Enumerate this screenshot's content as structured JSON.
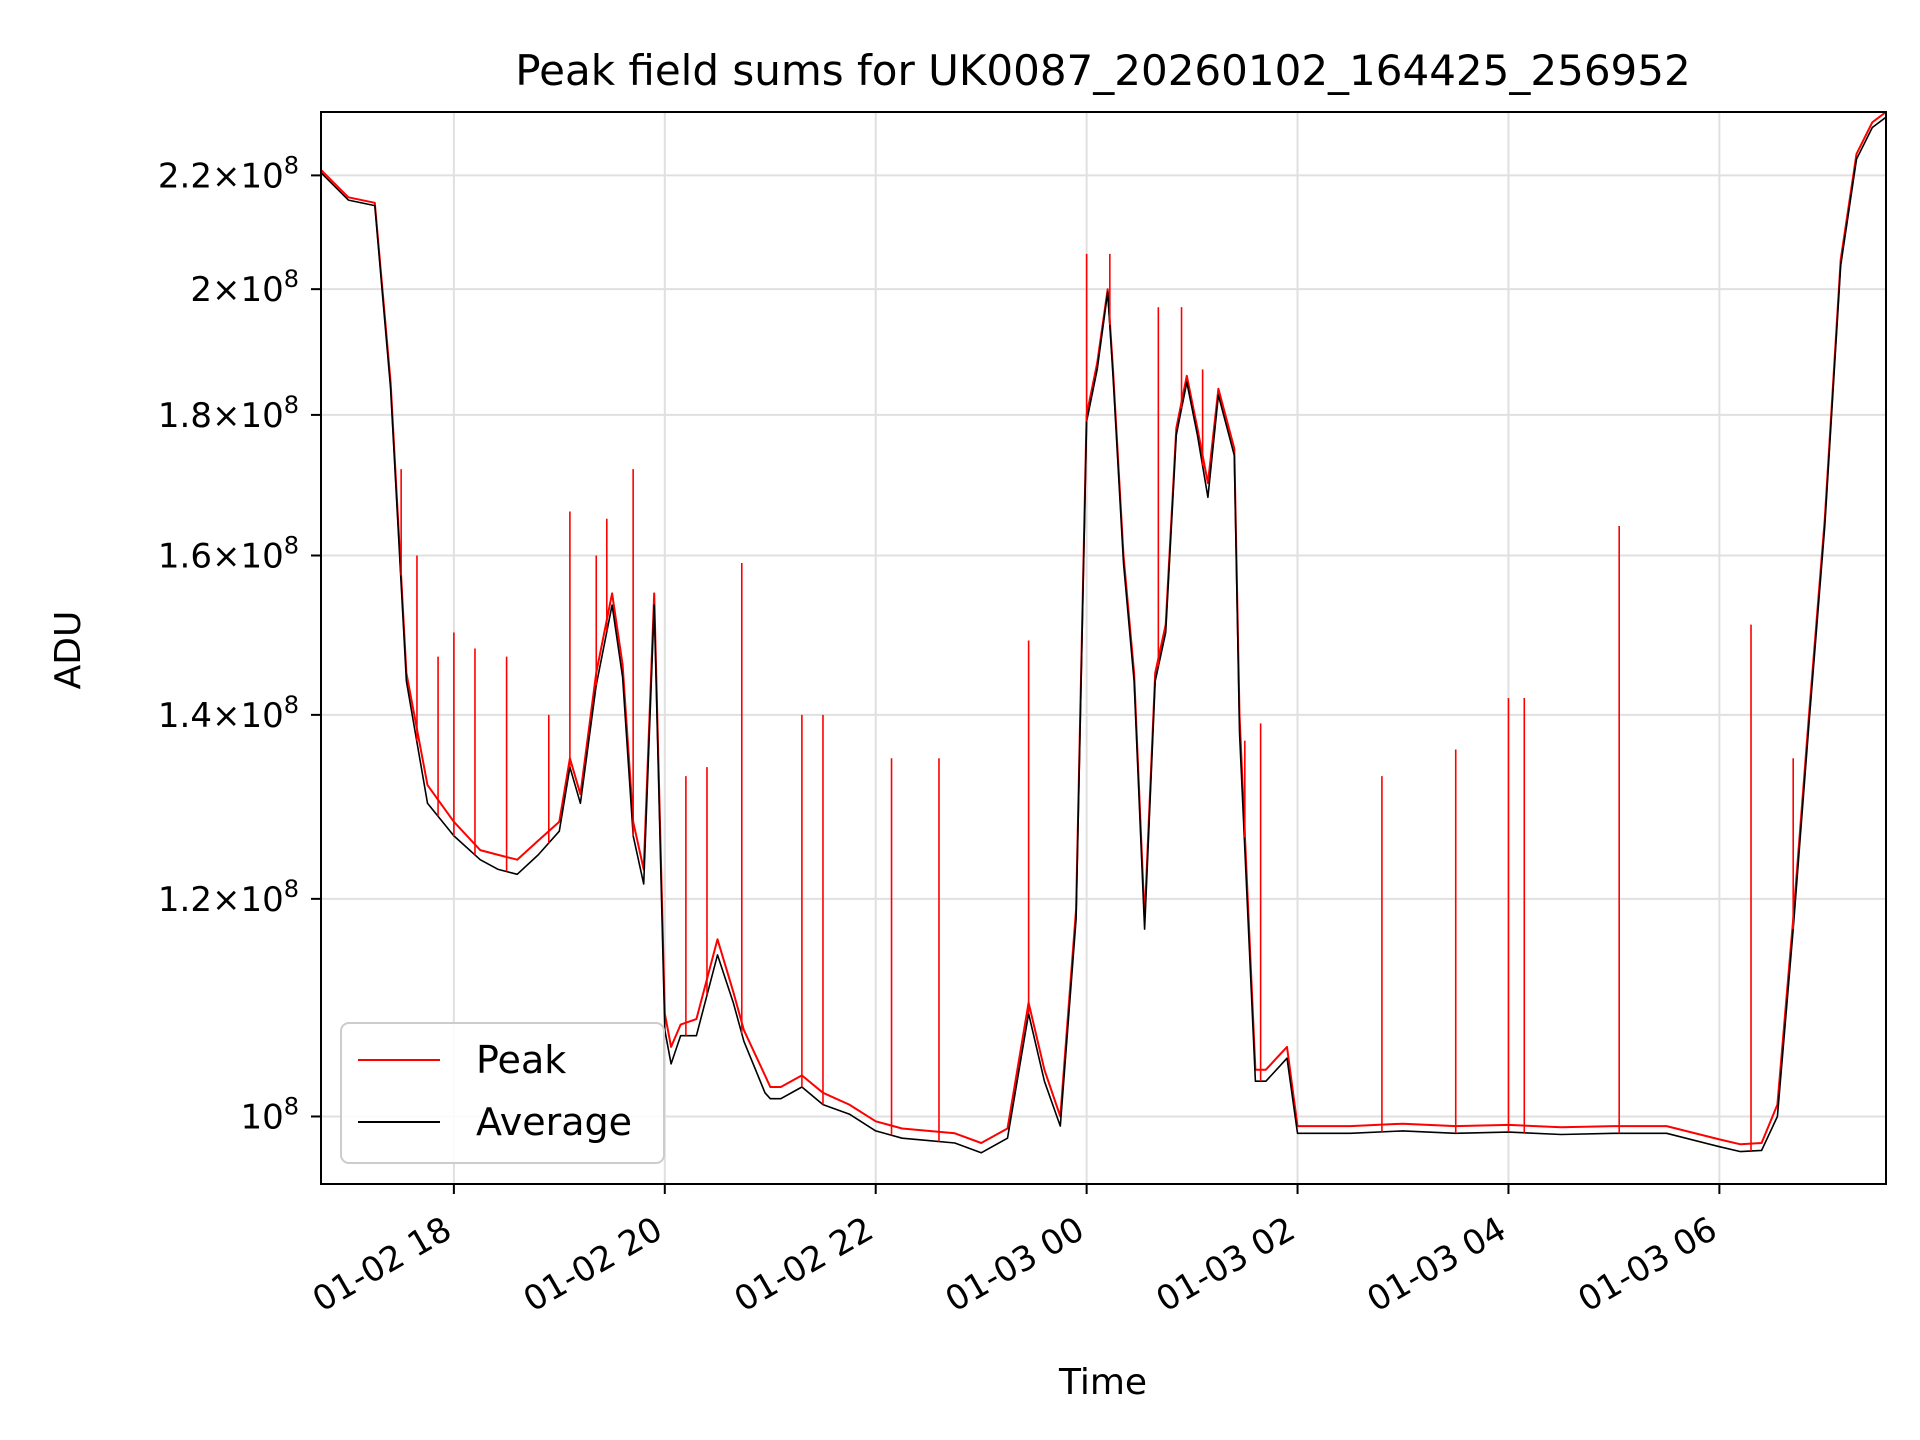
{
  "chart_data": {
    "type": "line",
    "title": "Peak field sums for UK0087_20260102_164425_256952",
    "xlabel": "Time",
    "ylabel": "ADU",
    "yscale": "log",
    "ylim": [
      94500000,
      232000000
    ],
    "xlim_hours": [
      16.74,
      31.58
    ],
    "grid": true,
    "legend_position": "lower-left",
    "x_ticks": [
      {
        "hour": 18,
        "label": "01-02 18"
      },
      {
        "hour": 20,
        "label": "01-02 20"
      },
      {
        "hour": 22,
        "label": "01-02 22"
      },
      {
        "hour": 24,
        "label": "01-03 00"
      },
      {
        "hour": 26,
        "label": "01-03 02"
      },
      {
        "hour": 28,
        "label": "01-03 04"
      },
      {
        "hour": 30,
        "label": "01-03 06"
      }
    ],
    "y_ticks": [
      {
        "value": 100000000,
        "mantissa": "",
        "exp": "8",
        "label": "10^8"
      },
      {
        "value": 120000000,
        "mantissa": "1.2",
        "exp": "8",
        "label": "1.2×10^8"
      },
      {
        "value": 140000000,
        "mantissa": "1.4",
        "exp": "8",
        "label": "1.4×10^8"
      },
      {
        "value": 160000000,
        "mantissa": "1.6",
        "exp": "8",
        "label": "1.6×10^8"
      },
      {
        "value": 180000000,
        "mantissa": "1.8",
        "exp": "8",
        "label": "1.8×10^8"
      },
      {
        "value": 200000000,
        "mantissa": "2",
        "exp": "8",
        "label": "2×10^8"
      },
      {
        "value": 220000000,
        "mantissa": "2.2",
        "exp": "8",
        "label": "2.2×10^8"
      }
    ],
    "series": [
      {
        "name": "Peak",
        "color": "#ff0000",
        "x_hours": [
          16.74,
          17.0,
          17.25,
          17.4,
          17.55,
          17.75,
          18.0,
          18.25,
          18.42,
          18.6,
          18.8,
          19.0,
          19.1,
          19.2,
          19.35,
          19.5,
          19.6,
          19.7,
          19.8,
          19.9,
          20.0,
          20.06,
          20.15,
          20.3,
          20.5,
          20.65,
          20.75,
          20.95,
          21.0,
          21.1,
          21.3,
          21.5,
          21.75,
          22.0,
          22.25,
          22.5,
          22.75,
          23.0,
          23.25,
          23.45,
          23.6,
          23.75,
          23.9,
          24.0,
          24.1,
          24.2,
          24.25,
          24.35,
          24.45,
          24.55,
          24.65,
          24.75,
          24.85,
          24.95,
          25.05,
          25.15,
          25.25,
          25.4,
          25.45,
          25.6,
          25.7,
          25.8,
          25.9,
          26.0,
          26.5,
          27.0,
          27.5,
          28.0,
          28.5,
          29.0,
          29.5,
          30.0,
          30.2,
          30.4,
          30.55,
          30.7,
          30.85,
          31.0,
          31.15,
          31.3,
          31.45,
          31.58
        ],
        "values": [
          221000000,
          216000000,
          215000000,
          185000000,
          145000000,
          132000000,
          128000000,
          125000000,
          124500000,
          124000000,
          126000000,
          128000000,
          135000000,
          131000000,
          145000000,
          155000000,
          146000000,
          128000000,
          123000000,
          155000000,
          109000000,
          106000000,
          108000000,
          108500000,
          116000000,
          111000000,
          107500000,
          103500000,
          102500000,
          102500000,
          103500000,
          102000000,
          101000000,
          99600000,
          99000000,
          98800000,
          98600000,
          97800000,
          99000000,
          110000000,
          104000000,
          100000000,
          119000000,
          180000000,
          188000000,
          200000000,
          187000000,
          160000000,
          145000000,
          118000000,
          145000000,
          151000000,
          178000000,
          186000000,
          178000000,
          170000000,
          184000000,
          175000000,
          140000000,
          104000000,
          104000000,
          105000000,
          106000000,
          99200000,
          99200000,
          99400000,
          99200000,
          99300000,
          99100000,
          99200000,
          99200000,
          98100000,
          97700000,
          97800000,
          101000000,
          118000000,
          140000000,
          165000000,
          205000000,
          224000000,
          230000000,
          232000000
        ]
      },
      {
        "name": "Average",
        "color": "#000000",
        "x_hours": [
          16.74,
          17.0,
          17.25,
          17.4,
          17.55,
          17.75,
          18.0,
          18.25,
          18.42,
          18.6,
          18.8,
          19.0,
          19.1,
          19.2,
          19.35,
          19.5,
          19.6,
          19.7,
          19.8,
          19.9,
          20.0,
          20.06,
          20.15,
          20.3,
          20.5,
          20.65,
          20.75,
          20.95,
          21.0,
          21.1,
          21.3,
          21.5,
          21.75,
          22.0,
          22.25,
          22.5,
          22.75,
          23.0,
          23.25,
          23.45,
          23.6,
          23.75,
          23.9,
          24.0,
          24.1,
          24.2,
          24.25,
          24.35,
          24.45,
          24.55,
          24.65,
          24.75,
          24.85,
          24.95,
          25.05,
          25.15,
          25.25,
          25.4,
          25.45,
          25.6,
          25.7,
          25.8,
          25.9,
          26.0,
          26.5,
          27.0,
          27.5,
          28.0,
          28.5,
          29.0,
          29.5,
          30.0,
          30.2,
          30.4,
          30.55,
          30.7,
          30.85,
          31.0,
          31.15,
          31.3,
          31.45,
          31.58
        ],
        "values": [
          220500000,
          215500000,
          214500000,
          184000000,
          144000000,
          130000000,
          126500000,
          124000000,
          123000000,
          122500000,
          124500000,
          127000000,
          134000000,
          130000000,
          143500000,
          153500000,
          144500000,
          126500000,
          121500000,
          153500000,
          107500000,
          104500000,
          107000000,
          107000000,
          114500000,
          110000000,
          106500000,
          102000000,
          101500000,
          101500000,
          102500000,
          101000000,
          100200000,
          98800000,
          98200000,
          98000000,
          97800000,
          97000000,
          98200000,
          109000000,
          103000000,
          99200000,
          118000000,
          179000000,
          187000000,
          199500000,
          186000000,
          159000000,
          144000000,
          117000000,
          144000000,
          150000000,
          177000000,
          185000000,
          177000000,
          168000000,
          183000000,
          174000000,
          138000000,
          103000000,
          103000000,
          104000000,
          105000000,
          98600000,
          98600000,
          98800000,
          98600000,
          98700000,
          98500000,
          98600000,
          98600000,
          97500000,
          97100000,
          97200000,
          100000000,
          117000000,
          139000000,
          164000000,
          204000000,
          223000000,
          229000000,
          231000000
        ]
      }
    ],
    "spikes": [
      {
        "hour": 17.5,
        "value": 172000000
      },
      {
        "hour": 17.65,
        "value": 160000000
      },
      {
        "hour": 17.85,
        "value": 147000000
      },
      {
        "hour": 18.0,
        "value": 150000000
      },
      {
        "hour": 18.2,
        "value": 148000000
      },
      {
        "hour": 18.5,
        "value": 147000000
      },
      {
        "hour": 18.9,
        "value": 140000000
      },
      {
        "hour": 19.1,
        "value": 166000000
      },
      {
        "hour": 19.35,
        "value": 160000000
      },
      {
        "hour": 19.45,
        "value": 165000000
      },
      {
        "hour": 19.7,
        "value": 172000000
      },
      {
        "hour": 20.2,
        "value": 133000000
      },
      {
        "hour": 20.4,
        "value": 134000000
      },
      {
        "hour": 20.73,
        "value": 159000000
      },
      {
        "hour": 21.3,
        "value": 140000000
      },
      {
        "hour": 21.5,
        "value": 140000000
      },
      {
        "hour": 22.15,
        "value": 135000000
      },
      {
        "hour": 22.6,
        "value": 135000000
      },
      {
        "hour": 23.45,
        "value": 149000000
      },
      {
        "hour": 24.0,
        "value": 206000000
      },
      {
        "hour": 24.22,
        "value": 206000000
      },
      {
        "hour": 24.68,
        "value": 197000000
      },
      {
        "hour": 24.9,
        "value": 197000000
      },
      {
        "hour": 25.1,
        "value": 187000000
      },
      {
        "hour": 25.5,
        "value": 137000000
      },
      {
        "hour": 25.65,
        "value": 139000000
      },
      {
        "hour": 26.8,
        "value": 133000000
      },
      {
        "hour": 27.5,
        "value": 136000000
      },
      {
        "hour": 28.0,
        "value": 142000000
      },
      {
        "hour": 28.15,
        "value": 142000000
      },
      {
        "hour": 29.05,
        "value": 164000000
      },
      {
        "hour": 30.3,
        "value": 151000000
      },
      {
        "hour": 30.7,
        "value": 135000000
      }
    ],
    "legend": [
      {
        "name": "Peak",
        "color": "#ff0000"
      },
      {
        "name": "Average",
        "color": "#000000"
      }
    ]
  }
}
